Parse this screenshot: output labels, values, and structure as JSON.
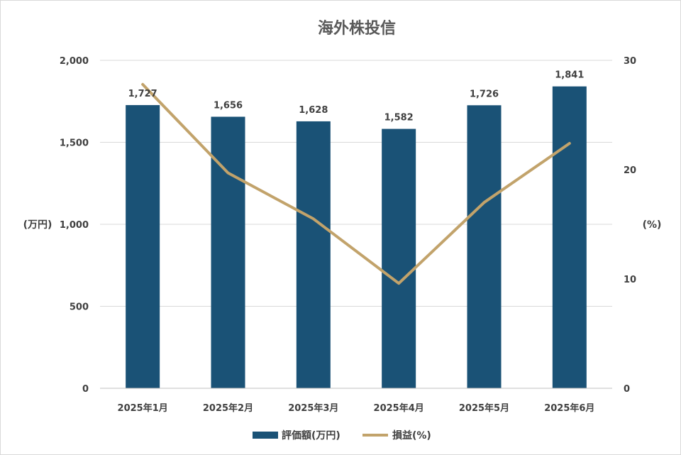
{
  "chart_data": {
    "type": "bar",
    "title": "海外株投信",
    "categories": [
      "2025年1月",
      "2025年2月",
      "2025年3月",
      "2025年4月",
      "2025年5月",
      "2025年6月"
    ],
    "series": [
      {
        "name": "評価額(万円)",
        "type": "bar",
        "axis": "left",
        "color": "#1a5276",
        "values": [
          1727,
          1656,
          1628,
          1582,
          1726,
          1841
        ],
        "data_labels": [
          "1,727",
          "1,656",
          "1,628",
          "1,582",
          "1,726",
          "1,841"
        ]
      },
      {
        "name": "損益(%)",
        "type": "line",
        "axis": "right",
        "color": "#c2a36b",
        "values": [
          27.8,
          19.7,
          15.5,
          9.6,
          17.0,
          22.4
        ]
      }
    ],
    "y_left": {
      "label": "(万円)",
      "ylim": [
        0,
        2000
      ],
      "ticks": [
        0,
        500,
        1000,
        1500,
        2000
      ],
      "tick_labels": [
        "0",
        "500",
        "1,000",
        "1,500",
        "2,000"
      ]
    },
    "y_right": {
      "label": "(%)",
      "ylim": [
        0,
        30
      ],
      "ticks": [
        0,
        10,
        20,
        30
      ],
      "tick_labels": [
        "0",
        "10",
        "20",
        "30"
      ]
    },
    "grid": true,
    "legend_position": "bottom"
  }
}
